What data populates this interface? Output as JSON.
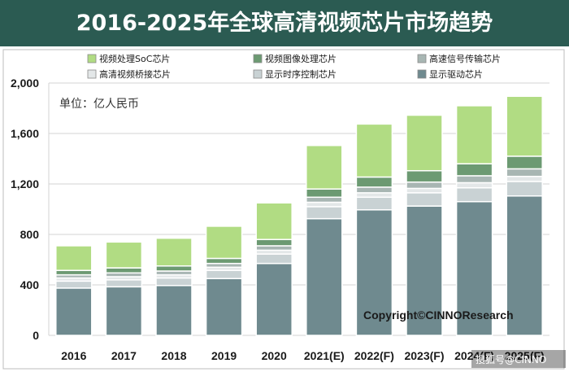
{
  "title": "2016-2025年全球高清视频芯片市场趋势",
  "chart_data": {
    "type": "bar",
    "stacked": true,
    "categories": [
      "2016",
      "2017",
      "2018",
      "2019",
      "2020",
      "2021(E)",
      "2022(F)",
      "2023(F)",
      "2024(F)",
      "2025(F)"
    ],
    "unit_label": "单位：亿人民币",
    "ylim": [
      0,
      2000
    ],
    "yticks": [
      "0",
      "400",
      "800",
      "1,200",
      "1,600",
      "2,000"
    ],
    "grid": true,
    "legend_position": "top",
    "series": [
      {
        "name": "显示驱动芯片",
        "color": "#6f8a8f",
        "values": [
          375,
          385,
          395,
          450,
          570,
          925,
          995,
          1025,
          1060,
          1105
        ]
      },
      {
        "name": "显示时序控制芯片",
        "color": "#c9d2d4",
        "values": [
          55,
          55,
          60,
          65,
          75,
          95,
          100,
          105,
          110,
          115
        ]
      },
      {
        "name": "高清视频桥接芯片",
        "color": "#e3e7e8",
        "values": [
          25,
          25,
          25,
          25,
          30,
          35,
          35,
          35,
          40,
          40
        ]
      },
      {
        "name": "高速信号传输芯片",
        "color": "#a8b6b3",
        "values": [
          25,
          30,
          30,
          30,
          35,
          40,
          45,
          50,
          55,
          60
        ]
      },
      {
        "name": "视频图像处理芯片",
        "color": "#6c9a72",
        "values": [
          35,
          40,
          40,
          40,
          50,
          65,
          80,
          90,
          95,
          100
        ]
      },
      {
        "name": "视频处理SoC芯片",
        "color": "#b1dc83",
        "values": [
          195,
          205,
          220,
          255,
          290,
          345,
          420,
          440,
          460,
          475
        ]
      }
    ]
  },
  "copyright": "Copyright©CINNOResearch",
  "watermark": "搜狐号@CINNO"
}
